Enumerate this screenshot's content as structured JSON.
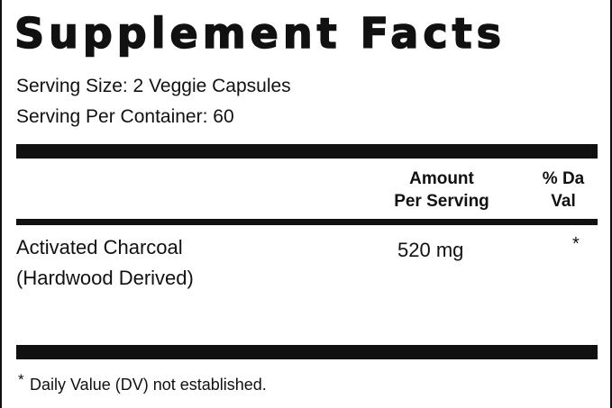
{
  "header": {
    "title": "Supplement Facts"
  },
  "serving": {
    "size": "Serving Size: 2 Veggie Capsules",
    "per_container": "Serving Per Container: 60"
  },
  "table": {
    "columns": [
      [
        "Amount",
        "Per Serving"
      ],
      [
        "% Da",
        "Val"
      ]
    ],
    "rows": [
      {
        "name": [
          "Activated Charcoal",
          "(Hardwood Derived)"
        ],
        "amount": "520 mg",
        "dv": "*"
      }
    ]
  },
  "footnote": {
    "marker": "*",
    "text": "Daily Value (DV) not established."
  }
}
